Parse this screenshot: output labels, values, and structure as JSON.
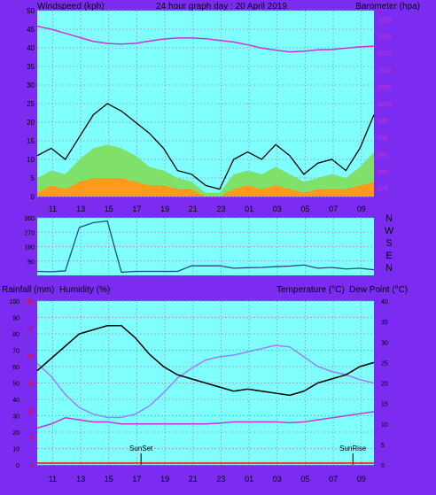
{
  "header": {
    "left": "Windspeed (kph)",
    "center": "24 hour graph day : 20 April 2019",
    "right": "Barometer (hpa)"
  },
  "mid_header": {
    "left1": "Rainfall (mm)",
    "left2": "Humidity (%)",
    "right1": "Temperature (°C)",
    "right2": "Dew Point (°C)"
  },
  "colors": {
    "plot_bg": "#80ffff",
    "frame": "#7b2cf0",
    "grid": "#8fb7c0",
    "wind_max": "#000000",
    "wind_avg_fill": "#7fe06a",
    "wind_min_fill": "#ff9a1a",
    "pressure": "#cc33cc",
    "direction": "#1a4f80",
    "temperature": "#000000",
    "humidity": "#9a80ff",
    "dewpoint": "#cc33cc",
    "rain": "#ff0000"
  },
  "time_ticks": [
    "11",
    "13",
    "15",
    "17",
    "19",
    "21",
    "23",
    "01",
    "03",
    "05",
    "07",
    "09"
  ],
  "direction_labels": [
    "N",
    "W",
    "S",
    "E",
    "N"
  ],
  "direction_ticks": [
    "360",
    "270",
    "180",
    "90"
  ],
  "annotations": {
    "sunset": "SunSet",
    "sunrise": "SunRise"
  },
  "chart_data": [
    {
      "type": "line",
      "name": "wind",
      "left_axis": {
        "ticks": [
          "0",
          "5",
          "10",
          "15",
          "20",
          "25",
          "30",
          "35",
          "40",
          "45",
          "50"
        ],
        "ylim": [
          0,
          50
        ]
      },
      "right_axis": {
        "ticks": [
          "975",
          "980",
          "985",
          "990",
          "995",
          "1000",
          "1005",
          "1010",
          "1015",
          "1020",
          "1025"
        ],
        "ylim": [
          972.5,
          1027.5
        ]
      },
      "x": [
        0,
        1,
        2,
        3,
        4,
        5,
        6,
        7,
        8,
        9,
        10,
        11,
        12,
        13,
        14,
        15,
        16,
        17,
        18,
        19,
        20,
        21,
        22,
        23,
        24
      ],
      "series": [
        {
          "key": "gust",
          "values": [
            11,
            13,
            10,
            16,
            22,
            25,
            23,
            20,
            17,
            13,
            7,
            6,
            3,
            2,
            10,
            12,
            10,
            14,
            11,
            6,
            9,
            10,
            7,
            13,
            22
          ]
        },
        {
          "key": "average",
          "values": [
            5,
            7,
            6,
            10,
            13,
            14,
            13,
            11,
            8,
            7,
            5,
            4,
            1,
            1,
            6,
            7,
            6,
            8,
            6,
            4,
            5,
            6,
            5,
            8,
            12
          ]
        },
        {
          "key": "lull",
          "values": [
            1,
            3,
            2,
            4,
            5,
            5,
            5,
            4,
            3,
            3,
            2,
            2,
            0,
            0,
            2,
            3,
            2,
            3,
            2,
            1,
            2,
            2,
            2,
            3,
            4
          ]
        },
        {
          "key": "pressure",
          "values": [
            1022.9,
            1022.0,
            1020.8,
            1019.6,
            1018.4,
            1017.8,
            1017.6,
            1017.8,
            1018.5,
            1019.1,
            1019.4,
            1019.4,
            1019.2,
            1018.7,
            1018.2,
            1017.4,
            1016.4,
            1015.8,
            1015.3,
            1015.5,
            1015.9,
            1016.0,
            1016.4,
            1016.8,
            1017.0
          ]
        }
      ]
    },
    {
      "type": "line",
      "name": "wind_direction",
      "ylim": [
        0,
        360
      ],
      "x": [
        0,
        1,
        2,
        3,
        4,
        5,
        6,
        7,
        8,
        9,
        10,
        11,
        12,
        13,
        14,
        15,
        16,
        17,
        18,
        19,
        20,
        21,
        22,
        23,
        24
      ],
      "series": [
        {
          "key": "direction",
          "values": [
            25,
            23,
            28,
            300,
            330,
            340,
            20,
            25,
            25,
            25,
            25,
            60,
            60,
            60,
            45,
            48,
            50,
            55,
            58,
            65,
            45,
            50,
            40,
            45,
            35
          ]
        }
      ]
    },
    {
      "type": "line",
      "name": "temperature_humidity",
      "left_axis": {
        "ticks": [
          "0",
          "10",
          "20",
          "30",
          "40",
          "50",
          "60",
          "70",
          "80",
          "90",
          "100"
        ],
        "ylim": [
          0,
          100
        ]
      },
      "rain_axis": {
        "ticks": [
          "0",
          "5",
          "10",
          "15",
          "20",
          "25",
          "30"
        ],
        "ylim": [
          0,
          30
        ]
      },
      "right_axis": {
        "ticks": [
          "0",
          "5",
          "10",
          "15",
          "20",
          "25",
          "30",
          "35",
          "40"
        ],
        "ylim": [
          0,
          40
        ]
      },
      "x": [
        0,
        1,
        2,
        3,
        4,
        5,
        6,
        7,
        8,
        9,
        10,
        11,
        12,
        13,
        14,
        15,
        16,
        17,
        18,
        19,
        20,
        21,
        22,
        23,
        24
      ],
      "series": [
        {
          "key": "temperature",
          "values": [
            23,
            26,
            29,
            32,
            33,
            34,
            34,
            31,
            27,
            24,
            22,
            21,
            20,
            19,
            18,
            18.5,
            18,
            17.5,
            17,
            18,
            20,
            21,
            22,
            24,
            25
          ]
        },
        {
          "key": "humidity",
          "values": [
            62,
            54,
            43,
            35,
            31,
            29,
            29,
            31,
            36,
            44,
            53,
            59,
            64,
            66,
            67,
            69,
            71,
            73,
            72,
            66,
            60,
            57,
            55,
            52,
            50
          ]
        },
        {
          "key": "dewpoint",
          "values": [
            9,
            10,
            11.5,
            11,
            10.5,
            10.5,
            10,
            10,
            10,
            10,
            10,
            10,
            10,
            10.2,
            10.5,
            10.5,
            10.5,
            10.5,
            10.3,
            10.5,
            11,
            11.5,
            12,
            12.5,
            13
          ]
        },
        {
          "key": "rain",
          "values": [
            0,
            0,
            0,
            0,
            0,
            0,
            0,
            0,
            0,
            0,
            0,
            0,
            0,
            0,
            0,
            0,
            0,
            0,
            0,
            0,
            0,
            0,
            0,
            0,
            0
          ]
        }
      ]
    }
  ]
}
